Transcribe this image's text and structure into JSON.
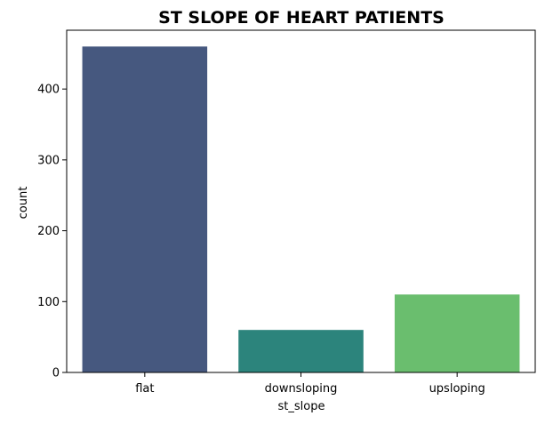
{
  "chart_data": {
    "type": "bar",
    "title": "ST SLOPE OF HEART PATIENTS",
    "xlabel": "st_slope",
    "ylabel": "count",
    "categories": [
      "flat",
      "downsloping",
      "upsloping"
    ],
    "values": [
      460,
      60,
      110
    ],
    "colors": [
      "#46587f",
      "#2c847c",
      "#6abe6e"
    ],
    "yticks": [
      0,
      100,
      200,
      300,
      400
    ],
    "ylim": [
      0,
      483
    ],
    "grid": false,
    "legend": "none"
  }
}
